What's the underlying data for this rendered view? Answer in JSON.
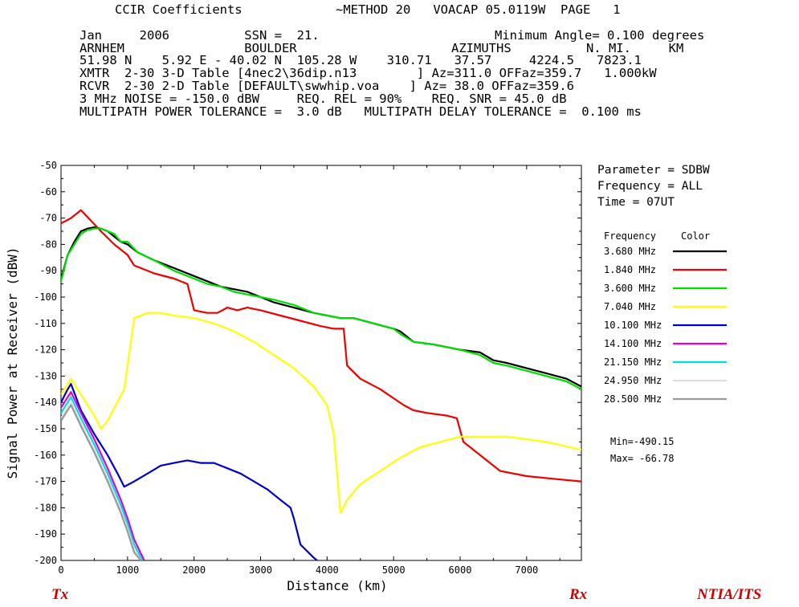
{
  "header": {
    "line1a": "CCIR Coefficients",
    "line1b": "~METHOD 20   VOACAP 05.0119W  PAGE   1",
    "line2a": "Jan     2006          SSN =  21.",
    "line2b": "Minimum Angle= 0.100 degrees",
    "line3a": "ARNHEM                BOULDER",
    "line3b": "AZIMUTHS          N. MI.     KM",
    "line4": "51.98 N    5.92 E - 40.02 N  105.28 W    310.71   37.57     4224.5   7823.1",
    "line5": "XMTR  2-30 3-D Table [4nec2\\36dip.n13        ] Az=311.0 OFFaz=359.7   1.000kW",
    "line6": "RCVR  2-30 2-D Table [DEFAULT\\swwhip.voa    ] Az= 38.0 OFFaz=359.6",
    "line7": "3 MHz NOISE = -150.0 dBW     REQ. REL = 90%    REQ. SNR = 45.0 dB",
    "line8": "MULTIPATH POWER TOLERANCE =  3.0 dB   MULTIPATH DELAY TOLERANCE =  0.100 ms"
  },
  "info": {
    "parameter": "Parameter = SDBW",
    "frequency": "Frequency = ALL",
    "time": "Time = 07UT",
    "legend_col1": "Frequency",
    "legend_col2": "Color",
    "min": "Min=-490.15",
    "max": "Max= -66.78"
  },
  "footer": {
    "tx": "Tx",
    "rx": "Rx",
    "org": "NTIA/ITS"
  },
  "chart_data": {
    "type": "line",
    "xlabel": "Distance (km)",
    "ylabel": "Signal Power at Receiver (dBW)",
    "xlim": [
      0,
      7823
    ],
    "ylim": [
      -200,
      -50
    ],
    "xticks": [
      0,
      1000,
      2000,
      3000,
      4000,
      5000,
      6000,
      7000
    ],
    "yticks": [
      -50,
      -60,
      -70,
      -80,
      -90,
      -100,
      -110,
      -120,
      -130,
      -140,
      -150,
      -160,
      -170,
      -180,
      -190,
      -200
    ],
    "series": [
      {
        "name": "3.680 MHz",
        "color": "#000000",
        "x": [
          0,
          100,
          200,
          300,
          400,
          500,
          600,
          700,
          800,
          900,
          1000,
          1150,
          1400,
          1700,
          2000,
          2200,
          2400,
          2600,
          2800,
          3000,
          3200,
          3500,
          3800,
          4000,
          4200,
          4400,
          4700,
          5000,
          5100,
          5300,
          5600,
          5800,
          6000,
          6300,
          6500,
          6700,
          7000,
          7300,
          7600,
          7823
        ],
        "y": [
          -93,
          -84,
          -79,
          -75,
          -74,
          -73.5,
          -74,
          -75,
          -77,
          -79,
          -80,
          -83,
          -86,
          -89,
          -92,
          -94,
          -96,
          -97,
          -98,
          -100,
          -102,
          -104,
          -106,
          -107,
          -108,
          -108,
          -110,
          -112,
          -113,
          -117,
          -118,
          -119,
          -120,
          -121,
          -124,
          -125,
          -127,
          -129,
          -131,
          -134
        ]
      },
      {
        "name": "1.840 MHz",
        "color": "#ee0000",
        "x": [
          0,
          150,
          300,
          450,
          600,
          800,
          1000,
          1100,
          1200,
          1400,
          1700,
          1900,
          2000,
          2200,
          2350,
          2500,
          2650,
          2800,
          3000,
          3300,
          3600,
          3900,
          4100,
          4250,
          4300,
          4500,
          4800,
          5150,
          5300,
          5500,
          5800,
          5950,
          6050,
          6200,
          6400,
          6600,
          7000,
          7400,
          7823
        ],
        "y": [
          -72,
          -70,
          -67,
          -71,
          -75,
          -80,
          -84,
          -88,
          -89,
          -91,
          -93,
          -95,
          -105,
          -106,
          -106,
          -104,
          -105,
          -104,
          -105,
          -107,
          -109,
          -111,
          -112,
          -112,
          -126,
          -131,
          -135,
          -141,
          -143,
          -144,
          -145,
          -146,
          -155,
          -158,
          -162,
          -166,
          -168,
          -169,
          -170
        ]
      },
      {
        "name": "3.600 MHz",
        "color": "#00dd00",
        "x": [
          0,
          100,
          200,
          300,
          400,
          500,
          600,
          700,
          800,
          900,
          1000,
          1150,
          1400,
          1700,
          2000,
          2200,
          2400,
          2600,
          2800,
          3000,
          3200,
          3500,
          3800,
          4000,
          4200,
          4400,
          4700,
          5000,
          5100,
          5300,
          5600,
          5800,
          6000,
          6300,
          6500,
          6700,
          7000,
          7300,
          7600,
          7823
        ],
        "y": [
          -94,
          -84,
          -80,
          -76,
          -74.5,
          -74,
          -74,
          -75,
          -76,
          -79,
          -79,
          -83,
          -86,
          -90,
          -93,
          -95,
          -96,
          -98,
          -99,
          -100,
          -101,
          -103,
          -106,
          -107,
          -108,
          -108,
          -110,
          -112,
          -114,
          -117,
          -118,
          -119,
          -120,
          -122,
          -125,
          -126,
          -128,
          -130,
          -132,
          -135
        ]
      },
      {
        "name": "7.040 MHz",
        "color": "#ffff00",
        "x": [
          0,
          150,
          300,
          400,
          500,
          600,
          700,
          800,
          950,
          1100,
          1300,
          1500,
          1700,
          2000,
          2300,
          2600,
          2900,
          3200,
          3500,
          3800,
          4000,
          4100,
          4200,
          4300,
          4500,
          4800,
          5100,
          5400,
          5700,
          6000,
          6300,
          6700,
          7000,
          7300,
          7823
        ],
        "y": [
          -137,
          -131,
          -137,
          -141,
          -145,
          -150,
          -147,
          -142,
          -135,
          -108,
          -106,
          -106,
          -107,
          -108,
          -110,
          -113,
          -117,
          -122,
          -127,
          -134,
          -141,
          -152,
          -182,
          -177,
          -171,
          -166,
          -161,
          -157,
          -155,
          -153,
          -153,
          -153,
          -154,
          -155,
          -158
        ]
      },
      {
        "name": "10.100 MHz",
        "color": "#0000cc",
        "x": [
          0,
          100,
          150,
          300,
          500,
          700,
          850,
          950,
          1100,
          1300,
          1500,
          1700,
          1900,
          2100,
          2300,
          2500,
          2700,
          2900,
          3100,
          3300,
          3450,
          3500,
          3600,
          3800,
          3850
        ],
        "y": [
          -140,
          -135,
          -133,
          -143,
          -152,
          -160,
          -167,
          -172,
          -170,
          -167,
          -164,
          -163,
          -162,
          -163,
          -163,
          -165,
          -167,
          -170,
          -173,
          -177,
          -180,
          -184,
          -194,
          -199,
          -200
        ]
      },
      {
        "name": "14.100 MHz",
        "color": "#dd00dd",
        "x": [
          0,
          150,
          300,
          500,
          700,
          900,
          1000,
          1100,
          1250
        ],
        "y": [
          -142,
          -136,
          -144,
          -154,
          -165,
          -177,
          -184,
          -192,
          -200
        ]
      },
      {
        "name": "21.150 MHz",
        "color": "#00dddd",
        "x": [
          0,
          150,
          300,
          500,
          700,
          900,
          1000,
          1100,
          1220
        ],
        "y": [
          -144,
          -138,
          -146,
          -156,
          -167,
          -179,
          -186,
          -194,
          -200
        ]
      },
      {
        "name": "24.950 MHz",
        "color": "#dddddd",
        "x": [
          0,
          150,
          300,
          500,
          700,
          900,
          1000,
          1100,
          1200
        ],
        "y": [
          -146,
          -140,
          -148,
          -158,
          -169,
          -181,
          -188,
          -196,
          -200
        ]
      },
      {
        "name": "28.500 MHz",
        "color": "#999999",
        "x": [
          0,
          150,
          300,
          500,
          700,
          900,
          1000,
          1100,
          1200
        ],
        "y": [
          -147,
          -141,
          -149,
          -159,
          -170,
          -182,
          -189,
          -197,
          -200
        ]
      }
    ]
  }
}
